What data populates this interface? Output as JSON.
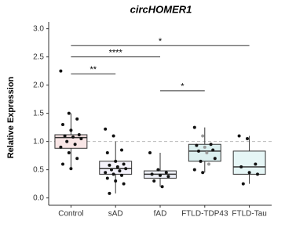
{
  "chart_data": {
    "type": "box",
    "title": "circHOMER1",
    "y_label": "Relative Expression",
    "categories": [
      "Control",
      "sAD",
      "fAD",
      "FTLD-TDP43",
      "FTLD-Tau"
    ],
    "boxes": [
      {
        "q1": 0.88,
        "median": 1.07,
        "q3": 1.12,
        "whisker_low": 0.52,
        "whisker_high": 1.5,
        "color": "#f9e6e6",
        "points": [
          2.25,
          1.5,
          1.4,
          1.3,
          1.2,
          1.12,
          1.1,
          1.08,
          1.05,
          1.0,
          0.95,
          0.9,
          0.8,
          0.7,
          0.6,
          0.52
        ]
      },
      {
        "q1": 0.42,
        "median": 0.52,
        "q3": 0.65,
        "whisker_low": 0.08,
        "whisker_high": 1.0,
        "color": "#f4f2fb",
        "points": [
          1.22,
          1.1,
          0.85,
          0.8,
          0.65,
          0.6,
          0.58,
          0.55,
          0.52,
          0.5,
          0.48,
          0.45,
          0.42,
          0.4,
          0.35,
          0.3,
          0.25,
          0.08
        ]
      },
      {
        "q1": 0.35,
        "median": 0.42,
        "q3": 0.48,
        "whisker_low": 0.2,
        "whisker_high": 0.8,
        "color": "#eef0f8",
        "points": [
          0.8,
          0.5,
          0.45,
          0.42,
          0.4,
          0.38,
          0.3,
          0.2
        ]
      },
      {
        "q1": 0.65,
        "median": 0.83,
        "q3": 0.95,
        "whisker_low": 0.45,
        "whisker_high": 1.25,
        "color": "#dcf0f0",
        "points": [
          1.25,
          1.1,
          0.95,
          0.93,
          0.9,
          0.85,
          0.83,
          0.8,
          0.7,
          0.65,
          0.6,
          0.5,
          0.45
        ]
      },
      {
        "q1": 0.42,
        "median": 0.55,
        "q3": 0.83,
        "whisker_low": 0.25,
        "whisker_high": 1.1,
        "color": "#e6f6f6",
        "points": [
          1.1,
          1.05,
          0.6,
          0.55,
          0.45,
          0.42,
          0.25
        ]
      }
    ],
    "reference_line": 1.0,
    "significance": [
      {
        "from": 0,
        "to": 4,
        "y": 2.7,
        "label": "*"
      },
      {
        "from": 0,
        "to": 2,
        "y": 2.5,
        "label": "****"
      },
      {
        "from": 0,
        "to": 1,
        "y": 2.2,
        "label": "**"
      },
      {
        "from": 2,
        "to": 3,
        "y": 1.9,
        "label": "*"
      }
    ],
    "ylim": [
      -0.13,
      3.12
    ],
    "yticks": [
      {
        "value": 0,
        "label": "0.0"
      },
      {
        "value": 0.5,
        "label": "0.5"
      },
      {
        "value": 1,
        "label": "1.0"
      },
      {
        "value": 1.5,
        "label": "1.5"
      },
      {
        "value": 2,
        "label": "2.0"
      },
      {
        "value": 2.5,
        "label": "2.5"
      },
      {
        "value": 3,
        "label": "3.0"
      }
    ]
  }
}
